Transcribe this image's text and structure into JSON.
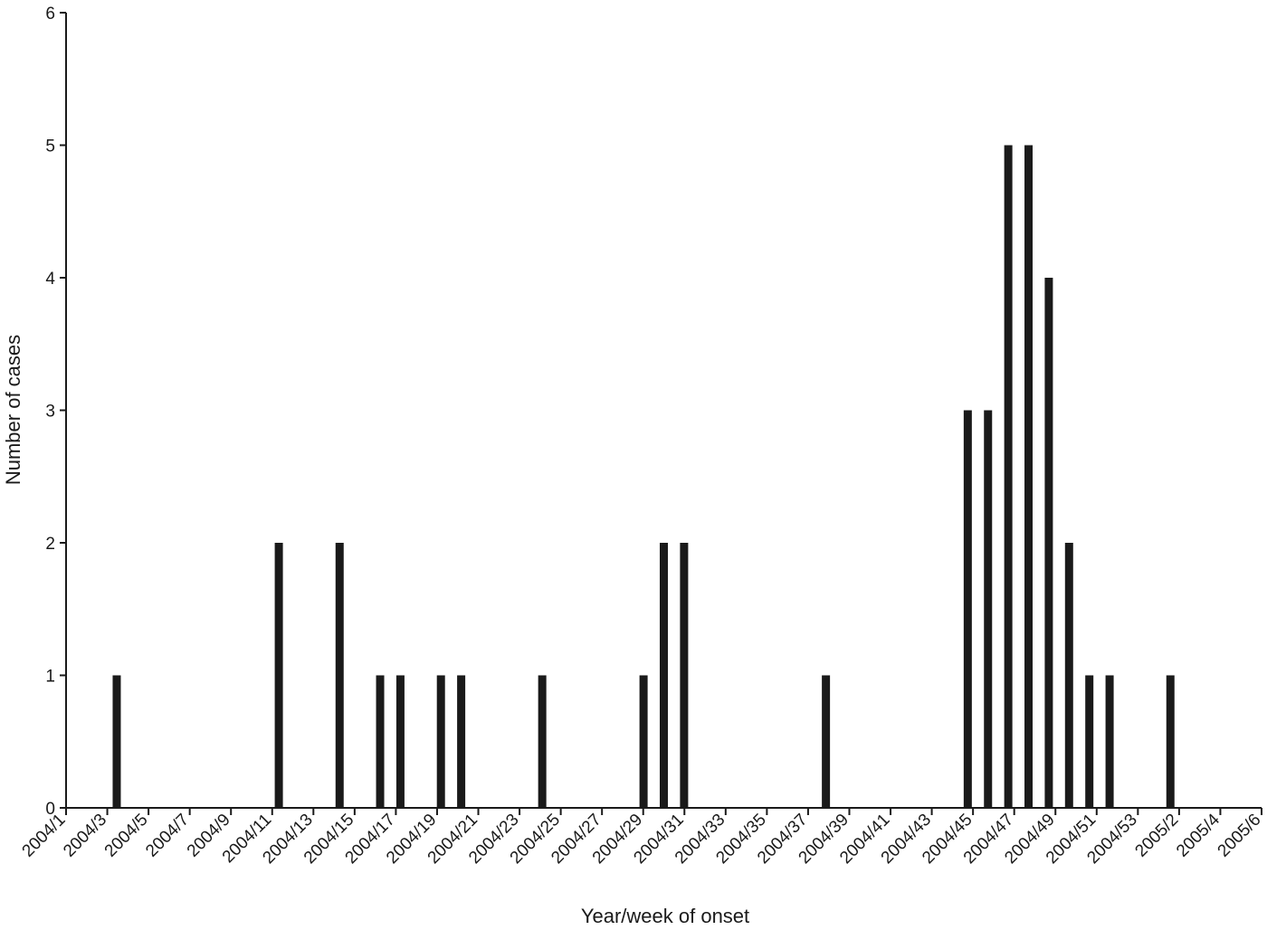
{
  "chart_data": {
    "type": "bar",
    "xlabel": "Year/week of onset",
    "ylabel": "Number of cases",
    "ylim": [
      0,
      6
    ],
    "yticks": [
      0,
      1,
      2,
      3,
      4,
      5,
      6
    ],
    "grid": false,
    "legend": "none",
    "bar_color": "#1a1a1a",
    "axis_color": "#1a1a1a",
    "x_tick_labels": [
      "2004/1",
      "2004/3",
      "2004/5",
      "2004/7",
      "2004/9",
      "2004/11",
      "2004/13",
      "2004/15",
      "2004/17",
      "2004/19",
      "2004/21",
      "2004/23",
      "2004/25",
      "2004/27",
      "2004/29",
      "2004/31",
      "2004/33",
      "2004/35",
      "2004/37",
      "2004/39",
      "2004/41",
      "2004/43",
      "2004/45",
      "2004/47",
      "2004/49",
      "2004/51",
      "2004/53",
      "2005/2",
      "2005/4",
      "2005/6"
    ],
    "categories": [
      "2004/1",
      "2004/2",
      "2004/3",
      "2004/4",
      "2004/5",
      "2004/6",
      "2004/7",
      "2004/8",
      "2004/9",
      "2004/10",
      "2004/11",
      "2004/12",
      "2004/13",
      "2004/14",
      "2004/15",
      "2004/16",
      "2004/17",
      "2004/18",
      "2004/19",
      "2004/20",
      "2004/21",
      "2004/22",
      "2004/23",
      "2004/24",
      "2004/25",
      "2004/26",
      "2004/27",
      "2004/28",
      "2004/29",
      "2004/30",
      "2004/31",
      "2004/32",
      "2004/33",
      "2004/34",
      "2004/35",
      "2004/36",
      "2004/37",
      "2004/38",
      "2004/39",
      "2004/40",
      "2004/41",
      "2004/42",
      "2004/43",
      "2004/44",
      "2004/45",
      "2004/46",
      "2004/47",
      "2004/48",
      "2004/49",
      "2004/50",
      "2004/51",
      "2004/52",
      "2004/53",
      "2005/1",
      "2005/2",
      "2005/3",
      "2005/4",
      "2005/5",
      "2005/6"
    ],
    "values": [
      0,
      0,
      1,
      0,
      0,
      0,
      0,
      0,
      0,
      0,
      2,
      0,
      0,
      2,
      0,
      1,
      1,
      0,
      1,
      1,
      0,
      0,
      0,
      1,
      0,
      0,
      0,
      0,
      1,
      2,
      2,
      0,
      0,
      0,
      0,
      0,
      0,
      1,
      0,
      0,
      0,
      0,
      0,
      0,
      3,
      3,
      5,
      5,
      4,
      2,
      1,
      1,
      0,
      0,
      1,
      0,
      0,
      0,
      0
    ]
  }
}
